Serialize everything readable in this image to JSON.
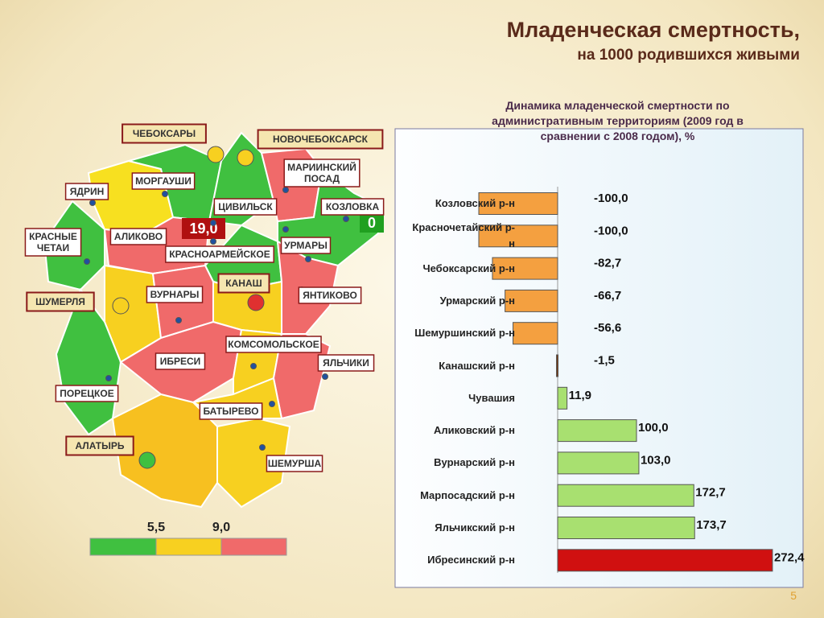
{
  "title": "Младенческая смертность,",
  "subtitle": "на 1000 родившихся живыми",
  "chart_data": {
    "type": "hbar",
    "title": "Динамика младенческой смертности по административным территориям (2009 год в сравнении с 2008 годом), %",
    "categories": [
      "Козловский р-н",
      "Красночетайский р-н",
      "Чебоксарский р-н",
      "Урмарский р-н",
      "Шемуршинский р-н",
      "Канашский р-н",
      "Чувашия",
      "Аликовский р-н",
      "Вурнарский р-н",
      "Марпосадский р-н",
      "Яльчикский р-н",
      "Ибресинский р-н"
    ],
    "values": [
      -100,
      -100,
      -82.7,
      -66.7,
      -56.6,
      -1.5,
      11.9,
      100,
      103,
      172.7,
      173.7,
      272.4
    ],
    "value_labels": [
      "-100,0",
      "-100,0",
      "-82,7",
      "-66,7",
      "-56,6",
      "-1,5",
      "11,9",
      "100,0",
      "103,0",
      "172,7",
      "173,7",
      "272,4"
    ],
    "colors": [
      "#f4a040",
      "#f4a040",
      "#f4a040",
      "#f4a040",
      "#f4a040",
      "#7a3a10",
      "#a8e070",
      "#a8e070",
      "#a8e070",
      "#a8e070",
      "#a8e070",
      "#d01010"
    ]
  },
  "map": {
    "labels": [
      [
        "ЧЕБОКСАРЫ"
      ],
      [
        "НОВОЧЕБОКСАРСК"
      ],
      [
        "МАРИИНСКИЙ",
        "ПОСАД"
      ],
      [
        "ЯДРИН"
      ],
      [
        "МОРГАУШИ"
      ],
      [
        "ЦИВИЛЬСК"
      ],
      [
        "КОЗЛОВКА"
      ],
      [
        "КРАСНЫЕ",
        "ЧЕТАИ"
      ],
      [
        "АЛИКОВО"
      ],
      [
        "УРМАРЫ"
      ],
      [
        "КРАСНОАРМЕЙСКОЕ"
      ],
      [
        "КАНАШ"
      ],
      [
        "ШУМЕРЛЯ"
      ],
      [
        "ВУРНАРЫ"
      ],
      [
        "ЯНТИКОВО"
      ],
      [
        "КОМСОМОЛЬСКОЕ"
      ],
      [
        "ИБРЕСИ"
      ],
      [
        "ЯЛЬЧИКИ"
      ],
      [
        "ПОРЕЦКОЕ"
      ],
      [
        "БАТЫРЕВО"
      ],
      [
        "АЛАТЫРЬ"
      ],
      [
        "ШЕМУРША"
      ]
    ],
    "badges": [
      "19,0",
      "0"
    ],
    "legend": [
      "5,5",
      "9,0"
    ]
  },
  "page_number": "5"
}
